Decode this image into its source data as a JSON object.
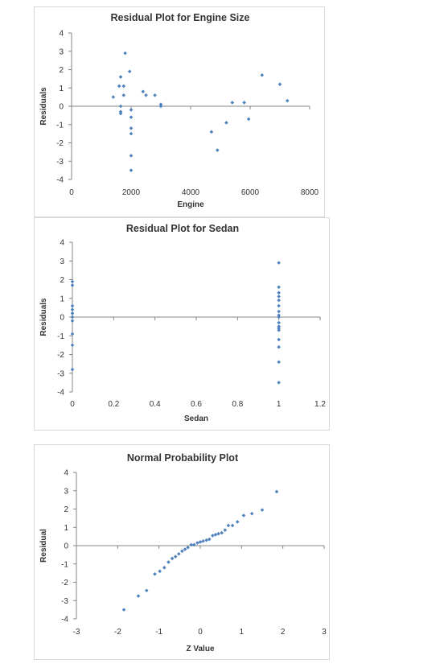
{
  "chart_data": [
    {
      "type": "scatter",
      "title": "Residual Plot for Engine Size",
      "xlabel": "Engine",
      "ylabel": "Residuals",
      "xlim": [
        0,
        8000
      ],
      "ylim": [
        -4,
        4
      ],
      "xticks": [
        0,
        2000,
        4000,
        6000,
        8000
      ],
      "yticks": [
        4,
        3,
        2,
        1,
        0,
        -1,
        -2,
        -3,
        -4
      ],
      "xtick_labels": [
        "0",
        "2000",
        "4000",
        "6000",
        "8000"
      ],
      "ytick_labels": [
        "4",
        "3",
        "2",
        "1",
        "0",
        "-1",
        "-2",
        "-3",
        "-4"
      ],
      "marker_color": "#4f81bd",
      "grid": false,
      "points": [
        [
          1400,
          0.5
        ],
        [
          1600,
          1.1
        ],
        [
          1650,
          1.6
        ],
        [
          1650,
          0.0
        ],
        [
          1650,
          -0.3
        ],
        [
          1650,
          -0.4
        ],
        [
          1750,
          1.1
        ],
        [
          1800,
          2.9
        ],
        [
          1750,
          0.6
        ],
        [
          1950,
          1.9
        ],
        [
          2000,
          -0.2
        ],
        [
          2000,
          -0.6
        ],
        [
          2000,
          -1.2
        ],
        [
          2000,
          -1.5
        ],
        [
          2000,
          -2.7
        ],
        [
          2000,
          -3.5
        ],
        [
          2400,
          0.8
        ],
        [
          2500,
          0.6
        ],
        [
          2800,
          0.6
        ],
        [
          3000,
          0.1
        ],
        [
          3000,
          0.0
        ],
        [
          4700,
          -1.4
        ],
        [
          4900,
          -2.4
        ],
        [
          5200,
          -0.9
        ],
        [
          5400,
          0.2
        ],
        [
          5800,
          0.2
        ],
        [
          5950,
          -0.7
        ],
        [
          6400,
          1.7
        ],
        [
          7000,
          1.2
        ],
        [
          7250,
          0.3
        ]
      ]
    },
    {
      "type": "scatter",
      "title": "Residual Plot for Sedan",
      "xlabel": "Sedan",
      "ylabel": "Residuals",
      "xlim": [
        0,
        1.2
      ],
      "ylim": [
        -4,
        4
      ],
      "xticks": [
        0,
        0.2,
        0.4,
        0.6,
        0.8,
        1,
        1.2
      ],
      "yticks": [
        4,
        3,
        2,
        1,
        0,
        -1,
        -2,
        -3,
        -4
      ],
      "xtick_labels": [
        "0",
        "0.2",
        "0.4",
        "0.6",
        "0.8",
        "1",
        "1.2"
      ],
      "ytick_labels": [
        "4",
        "3",
        "2",
        "1",
        "0",
        "-1",
        "-2",
        "-3",
        "-4"
      ],
      "marker_color": "#4f81bd",
      "grid": false,
      "points": [
        [
          0,
          1.9
        ],
        [
          0,
          1.7
        ],
        [
          0,
          0.6
        ],
        [
          0,
          0.4
        ],
        [
          0,
          0.2
        ],
        [
          0,
          0.0
        ],
        [
          0,
          -0.2
        ],
        [
          0,
          -0.9
        ],
        [
          0,
          -1.5
        ],
        [
          0,
          -2.8
        ],
        [
          1,
          2.9
        ],
        [
          1,
          1.6
        ],
        [
          1,
          1.3
        ],
        [
          1,
          1.1
        ],
        [
          1,
          0.9
        ],
        [
          1,
          0.6
        ],
        [
          1,
          0.3
        ],
        [
          1,
          0.1
        ],
        [
          1,
          0.0
        ],
        [
          1,
          -0.3
        ],
        [
          1,
          -0.5
        ],
        [
          1,
          -0.6
        ],
        [
          1,
          -0.7
        ],
        [
          1,
          -1.2
        ],
        [
          1,
          -1.6
        ],
        [
          1,
          -2.4
        ],
        [
          1,
          -3.5
        ]
      ]
    },
    {
      "type": "scatter",
      "title": "Normal Probability Plot",
      "xlabel": "Z Value",
      "ylabel": "Residual",
      "xlim": [
        -3,
        3
      ],
      "ylim": [
        -4,
        4
      ],
      "xticks": [
        -3,
        -2,
        -1,
        0,
        1,
        2,
        3
      ],
      "yticks": [
        4,
        3,
        2,
        1,
        0,
        -1,
        -2,
        -3,
        -4
      ],
      "xtick_labels": [
        "-3",
        "-2",
        "-1",
        "0",
        "1",
        "2",
        "3"
      ],
      "ytick_labels": [
        "4",
        "3",
        "2",
        "1",
        "0",
        "-1",
        "-2",
        "-3",
        "-4"
      ],
      "marker_color": "#4f81bd",
      "grid": false,
      "points": [
        [
          -1.85,
          -3.5
        ],
        [
          -1.5,
          -2.75
        ],
        [
          -1.3,
          -2.45
        ],
        [
          -1.1,
          -1.55
        ],
        [
          -0.98,
          -1.4
        ],
        [
          -0.87,
          -1.2
        ],
        [
          -0.77,
          -0.9
        ],
        [
          -0.68,
          -0.7
        ],
        [
          -0.6,
          -0.6
        ],
        [
          -0.52,
          -0.45
        ],
        [
          -0.44,
          -0.3
        ],
        [
          -0.37,
          -0.2
        ],
        [
          -0.3,
          -0.1
        ],
        [
          -0.22,
          0.05
        ],
        [
          -0.15,
          0.05
        ],
        [
          -0.07,
          0.15
        ],
        [
          0.0,
          0.2
        ],
        [
          0.07,
          0.25
        ],
        [
          0.15,
          0.3
        ],
        [
          0.22,
          0.35
        ],
        [
          0.3,
          0.55
        ],
        [
          0.37,
          0.6
        ],
        [
          0.44,
          0.65
        ],
        [
          0.52,
          0.7
        ],
        [
          0.6,
          0.85
        ],
        [
          0.68,
          1.1
        ],
        [
          0.78,
          1.1
        ],
        [
          0.9,
          1.3
        ],
        [
          1.05,
          1.65
        ],
        [
          1.25,
          1.75
        ],
        [
          1.5,
          1.95
        ],
        [
          1.85,
          2.95
        ]
      ]
    }
  ]
}
